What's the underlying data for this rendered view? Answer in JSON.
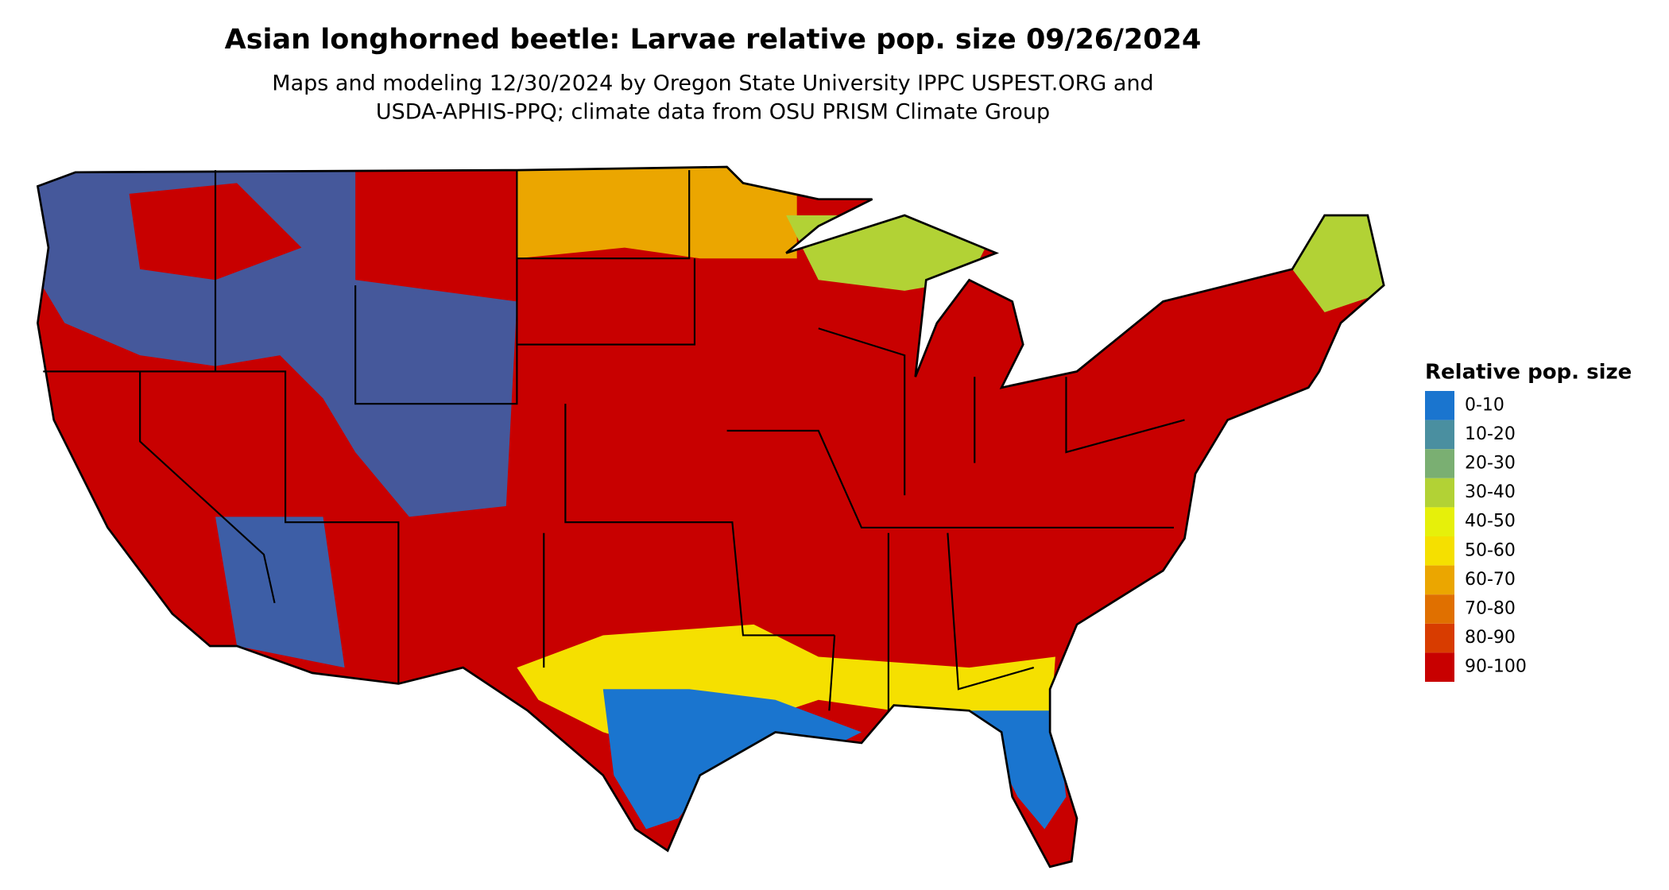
{
  "header": {
    "title": "Asian longhorned beetle: Larvae relative pop. size 09/26/2024",
    "subtitle": [
      "Maps and modeling 12/30/2024 by Oregon State University IPPC USPEST.ORG and",
      "USDA-APHIS-PPQ; climate data from OSU PRISM Climate Group"
    ]
  },
  "legend": {
    "title": "Relative pop. size",
    "items": [
      {
        "label": "0-10",
        "color": "#1a75cf"
      },
      {
        "label": "10-20",
        "color": "#4a8fa0"
      },
      {
        "label": "20-30",
        "color": "#7aaf72"
      },
      {
        "label": "30-40",
        "color": "#b2d235"
      },
      {
        "label": "40-50",
        "color": "#e6f00a"
      },
      {
        "label": "50-60",
        "color": "#f5e000"
      },
      {
        "label": "60-70",
        "color": "#eba600"
      },
      {
        "label": "70-80",
        "color": "#e07000"
      },
      {
        "label": "80-90",
        "color": "#d83c00"
      },
      {
        "label": "90-100",
        "color": "#c80000"
      }
    ]
  }
}
